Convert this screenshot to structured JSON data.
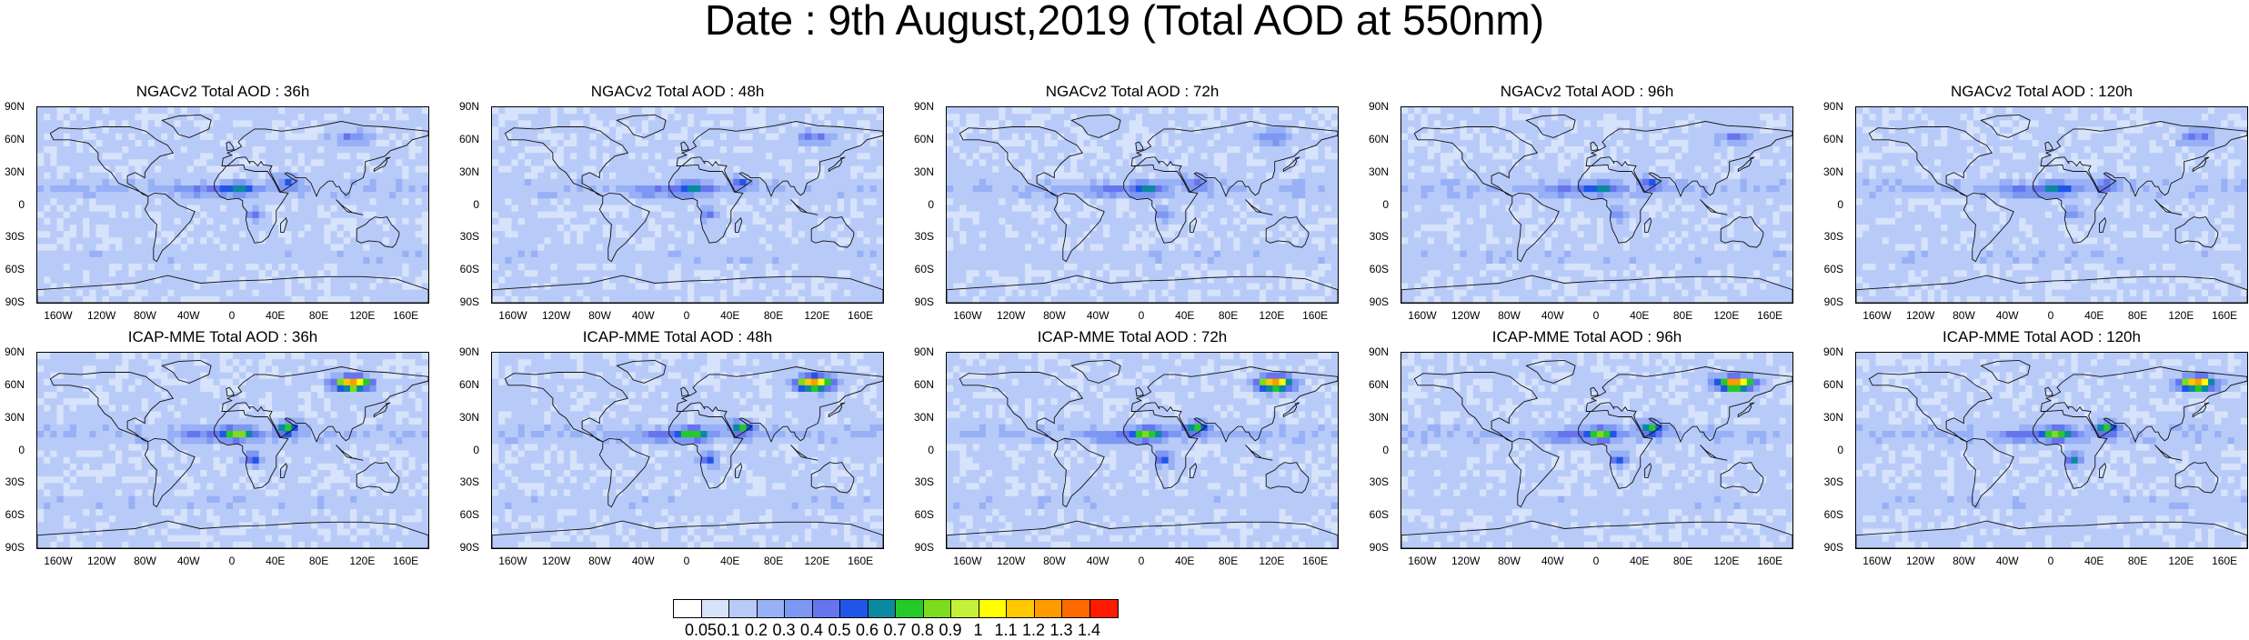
{
  "title": "Date : 9th August,2019 (Total AOD at 550nm)",
  "panels": [
    {
      "title": "NGACv2 Total AOD : 36h",
      "model": "NGACv2"
    },
    {
      "title": "NGACv2 Total AOD : 48h",
      "model": "NGACv2"
    },
    {
      "title": "NGACv2 Total AOD : 72h",
      "model": "NGACv2"
    },
    {
      "title": "NGACv2 Total AOD : 96h",
      "model": "NGACv2"
    },
    {
      "title": "NGACv2 Total AOD : 120h",
      "model": "NGACv2"
    },
    {
      "title": "ICAP-MME Total AOD : 36h",
      "model": "ICAP-MME"
    },
    {
      "title": "ICAP-MME Total AOD : 48h",
      "model": "ICAP-MME"
    },
    {
      "title": "ICAP-MME Total AOD : 72h",
      "model": "ICAP-MME"
    },
    {
      "title": "ICAP-MME Total AOD : 96h",
      "model": "ICAP-MME"
    },
    {
      "title": "ICAP-MME Total AOD : 120h",
      "model": "ICAP-MME"
    }
  ],
  "lat_labels": [
    "90N",
    "60N",
    "30N",
    "0",
    "30S",
    "60S",
    "90S"
  ],
  "lon_labels": [
    "160W",
    "120W",
    "80W",
    "40W",
    "0",
    "40E",
    "80E",
    "120E",
    "160E"
  ],
  "colorbar": {
    "levels": [
      "0.05",
      "0.1",
      "0.2",
      "0.3",
      "0.4",
      "0.5",
      "0.6",
      "0.7",
      "0.8",
      "0.9",
      "1",
      "1.1",
      "1.2",
      "1.3",
      "1.4"
    ],
    "colors": [
      "#ffffff",
      "#d7e3fb",
      "#b8cbf8",
      "#98b0f5",
      "#7d98f2",
      "#6675ee",
      "#1f56e8",
      "#0a8aa0",
      "#24c92a",
      "#7ddc1c",
      "#c4f03a",
      "#ffff00",
      "#ffc800",
      "#ff9a00",
      "#ff6a00",
      "#ff1a00"
    ]
  }
}
